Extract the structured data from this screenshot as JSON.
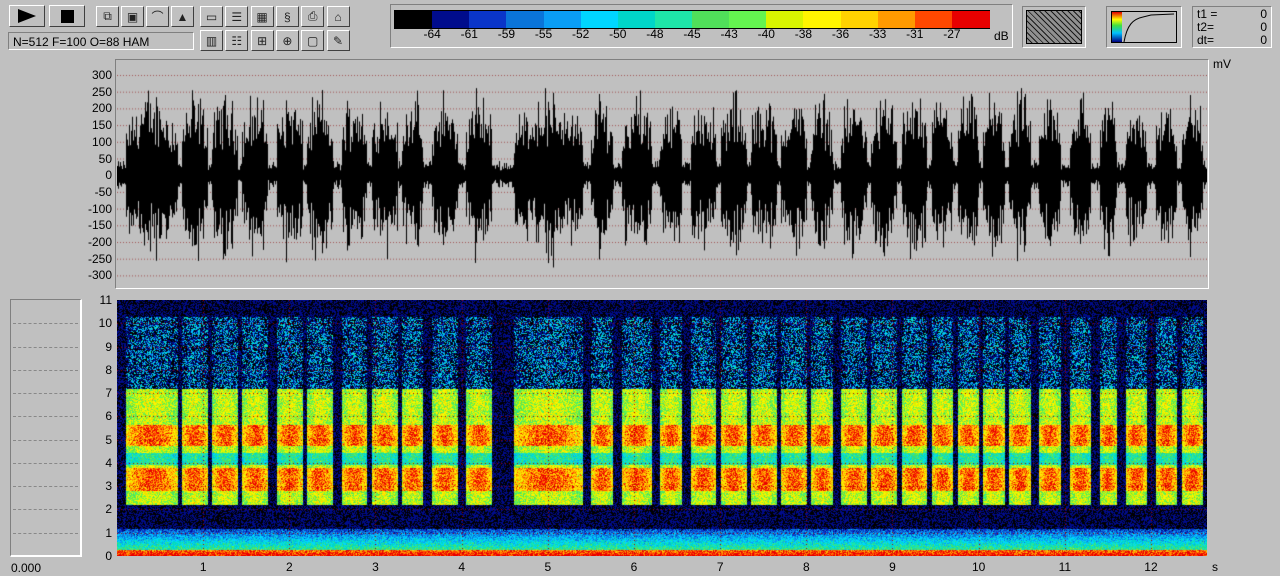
{
  "toolbar": {
    "play_icon": "play-icon",
    "stop_icon": "stop-icon",
    "status_field": "N=512 F=100 O=88 HAM",
    "group1": [
      "copy-icon",
      "save-icon",
      "filter-curve-icon",
      "envelope-icon"
    ],
    "group2_top": [
      "window-icon",
      "new-window-icon",
      "pattern-icon",
      "spectrum-s-icon",
      "print-icon",
      "open-folder-icon"
    ],
    "group2_bottom": [
      "grid-icon",
      "list-icon",
      "crosshair-icon",
      "cursor-cross-icon",
      "frame-icon",
      "edit-icon"
    ]
  },
  "colorbar": {
    "colors": [
      "#000000",
      "#000c8c",
      "#0a35c9",
      "#0a74d9",
      "#0a9df5",
      "#00d6ff",
      "#00d6c8",
      "#1ee6a8",
      "#50e05a",
      "#64f550",
      "#d8f500",
      "#fff500",
      "#ffd200",
      "#ff9a00",
      "#ff4800",
      "#e80000"
    ],
    "labels": [
      "-64",
      "-61",
      "-59",
      "-55",
      "-52",
      "-50",
      "-48",
      "-45",
      "-43",
      "-40",
      "-38",
      "-36",
      "-33",
      "-31",
      "-27"
    ],
    "unit": "dB"
  },
  "cursor_readout": {
    "t1_label": "t1 =",
    "t1": "0",
    "t2_label": "t2=",
    "t2": "0",
    "dt_label": "dt=",
    "dt": "0"
  },
  "waveform": {
    "unit": "mV",
    "y_ticks": [
      "300",
      "250",
      "200",
      "150",
      "100",
      "50",
      "0",
      "-50",
      "-100",
      "-150",
      "-200",
      "-250",
      "-300"
    ]
  },
  "spectrogram": {
    "y_ticks": [
      "11",
      "10",
      "9",
      "8",
      "7",
      "6",
      "5",
      "4",
      "3",
      "2",
      "1",
      "0"
    ],
    "x_ticks": [
      "1",
      "2",
      "3",
      "4",
      "5",
      "6",
      "7",
      "8",
      "9",
      "10",
      "11",
      "12"
    ],
    "x_unit": "s",
    "duration_s": 12.65,
    "max_khz": 11
  },
  "side_panel": {
    "value": "0.000"
  }
}
